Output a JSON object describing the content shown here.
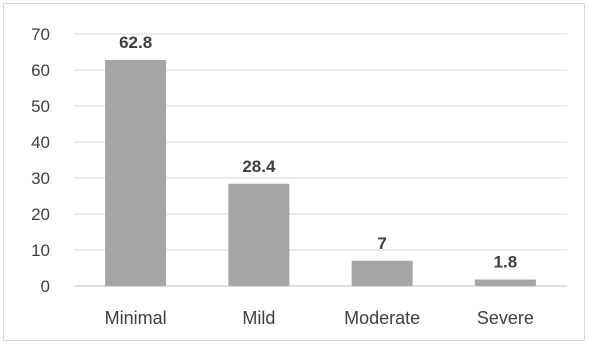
{
  "chart_data": {
    "type": "bar",
    "categories": [
      "Minimal",
      "Mild",
      "Moderate",
      "Severe"
    ],
    "values": [
      62.8,
      28.4,
      7,
      1.8
    ],
    "data_labels": [
      "62.8",
      "28.4",
      "7",
      "1.8"
    ],
    "yticks": [
      "0",
      "10",
      "20",
      "30",
      "40",
      "50",
      "60",
      "70"
    ],
    "ylim": [
      0,
      70
    ],
    "grid": true,
    "legend": "none",
    "colors": {
      "bar": "#a5a5a5",
      "grid": "#d9d9d9",
      "axis": "#bfbfbf",
      "text": "#404040"
    }
  }
}
